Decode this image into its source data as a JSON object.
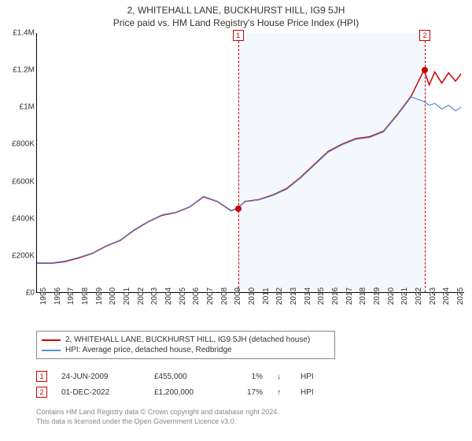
{
  "title": "2, WHITEHALL LANE, BUCKHURST HILL, IG9 5JH",
  "subtitle": "Price paid vs. HM Land Registry's House Price Index (HPI)",
  "chart": {
    "type": "line",
    "background_color": "#ffffff",
    "plot_border_color": "#000000",
    "y": {
      "min": 0,
      "max": 1400000,
      "ticks": [
        0,
        200000,
        400000,
        600000,
        800000,
        1000000,
        1200000,
        1400000
      ],
      "labels": [
        "£0",
        "£200K",
        "£400K",
        "£600K",
        "£800K",
        "£1M",
        "£1.2M",
        "£1.4M"
      ],
      "label_fontsize": 10
    },
    "x": {
      "min": 1995,
      "max": 2025.8,
      "ticks": [
        1995,
        1996,
        1997,
        1998,
        1999,
        2000,
        2001,
        2002,
        2003,
        2004,
        2005,
        2006,
        2007,
        2008,
        2009,
        2010,
        2011,
        2012,
        2013,
        2014,
        2015,
        2016,
        2017,
        2018,
        2019,
        2020,
        2021,
        2022,
        2023,
        2024,
        2025
      ],
      "label_fontsize": 10
    },
    "shade_band": {
      "from": 2009.48,
      "to": 2022.92,
      "color": "rgba(120,160,220,0.08)"
    },
    "series": [
      {
        "name": "property",
        "label": "2, WHITEHALL LANE, BUCKHURST HILL, IG9 5JH (detached house)",
        "color": "#c80000",
        "line_width": 1.5,
        "points": [
          [
            1995,
            157000
          ],
          [
            1996,
            156000
          ],
          [
            1997,
            165000
          ],
          [
            1998,
            185000
          ],
          [
            1999,
            210000
          ],
          [
            2000,
            250000
          ],
          [
            2001,
            280000
          ],
          [
            2002,
            335000
          ],
          [
            2003,
            380000
          ],
          [
            2004,
            415000
          ],
          [
            2005,
            430000
          ],
          [
            2006,
            460000
          ],
          [
            2007,
            515000
          ],
          [
            2008,
            490000
          ],
          [
            2009,
            440000
          ],
          [
            2009.48,
            455000
          ],
          [
            2010,
            490000
          ],
          [
            2011,
            500000
          ],
          [
            2012,
            525000
          ],
          [
            2013,
            560000
          ],
          [
            2014,
            620000
          ],
          [
            2015,
            690000
          ],
          [
            2016,
            760000
          ],
          [
            2017,
            800000
          ],
          [
            2018,
            830000
          ],
          [
            2019,
            840000
          ],
          [
            2020,
            870000
          ],
          [
            2021,
            960000
          ],
          [
            2022,
            1060000
          ],
          [
            2022.92,
            1200000
          ],
          [
            2023.3,
            1120000
          ],
          [
            2023.7,
            1190000
          ],
          [
            2024.2,
            1130000
          ],
          [
            2024.7,
            1185000
          ],
          [
            2025.2,
            1140000
          ],
          [
            2025.6,
            1180000
          ]
        ]
      },
      {
        "name": "hpi",
        "label": "HPI: Average price, detached house, Redbridge",
        "color": "#5b8fd6",
        "line_width": 1.2,
        "points": [
          [
            1995,
            159000
          ],
          [
            1996,
            158000
          ],
          [
            1997,
            168000
          ],
          [
            1998,
            188000
          ],
          [
            1999,
            212000
          ],
          [
            2000,
            252000
          ],
          [
            2001,
            282000
          ],
          [
            2002,
            338000
          ],
          [
            2003,
            382000
          ],
          [
            2004,
            418000
          ],
          [
            2005,
            432000
          ],
          [
            2006,
            462000
          ],
          [
            2007,
            518000
          ],
          [
            2008,
            492000
          ],
          [
            2009,
            442000
          ],
          [
            2009.48,
            455000
          ],
          [
            2010,
            488000
          ],
          [
            2011,
            498000
          ],
          [
            2012,
            522000
          ],
          [
            2013,
            556000
          ],
          [
            2014,
            616000
          ],
          [
            2015,
            686000
          ],
          [
            2016,
            756000
          ],
          [
            2017,
            796000
          ],
          [
            2018,
            826000
          ],
          [
            2019,
            836000
          ],
          [
            2020,
            866000
          ],
          [
            2021,
            956000
          ],
          [
            2022,
            1055000
          ],
          [
            2022.92,
            1030000
          ],
          [
            2023.3,
            1010000
          ],
          [
            2023.7,
            1020000
          ],
          [
            2024.2,
            990000
          ],
          [
            2024.7,
            1010000
          ],
          [
            2025.2,
            980000
          ],
          [
            2025.6,
            1000000
          ]
        ]
      }
    ],
    "markers": [
      {
        "id": "1",
        "x": 2009.48,
        "y": 455000,
        "color": "#c80000",
        "badge_top_offset": -4
      },
      {
        "id": "2",
        "x": 2022.92,
        "y": 1200000,
        "color": "#c80000",
        "badge_top_offset": -4
      }
    ]
  },
  "legend": {
    "border_color": "#888888",
    "fontsize": 10
  },
  "transactions": [
    {
      "id": "1",
      "date": "24-JUN-2009",
      "price": "£455,000",
      "pct": "1%",
      "arrow": "↓",
      "vs": "HPI",
      "color": "#c80000"
    },
    {
      "id": "2",
      "date": "01-DEC-2022",
      "price": "£1,200,000",
      "pct": "17%",
      "arrow": "↑",
      "vs": "HPI",
      "color": "#c80000"
    }
  ],
  "footer": {
    "line1": "Contains HM Land Registry data © Crown copyright and database right 2024.",
    "line2": "This data is licensed under the Open Government Licence v3.0.",
    "color": "#888888",
    "fontsize": 9
  }
}
